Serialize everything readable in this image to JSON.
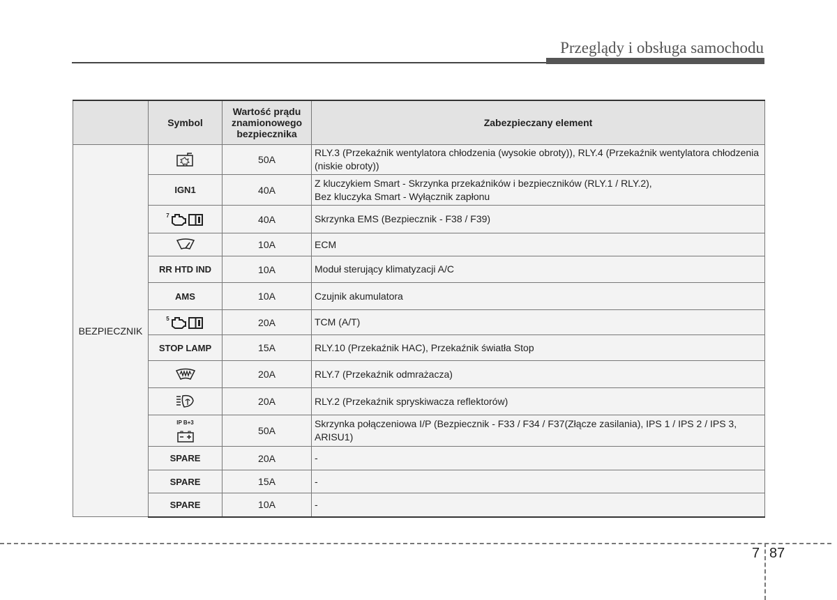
{
  "header": {
    "title": "Przeglądy i obsługa samochodu"
  },
  "table": {
    "columns": [
      "",
      "Symbol",
      "Wartość prądu znamionowego bezpiecznika",
      "Zabezpieczany element"
    ],
    "group_label": "BEZPIECZNIK",
    "rows": [
      {
        "symbol_icon": "cooling-fan-icon",
        "symbol": "",
        "value": "50A",
        "desc": "RLY.3 (Przekaźnik wentylatora chłodzenia (wysokie obroty)), RLY.4 (Przekaźnik wentylatora chłodzenia (niskie obroty))"
      },
      {
        "symbol": "IGN1",
        "value": "40A",
        "desc": "Z kluczykiem Smart - Skrzynka przekaźników i bezpieczników (RLY.1 / RLY.2),\nBez kluczyka Smart - Wyłącznik zapłonu"
      },
      {
        "symbol_icon": "engine-manual-icon",
        "symbol": "7",
        "value": "40A",
        "desc": "Skrzynka EMS (Bezpiecznik - F38 / F39)"
      },
      {
        "symbol_icon": "wiper-icon",
        "symbol": "",
        "value": "10A",
        "desc": "ECM"
      },
      {
        "symbol": "RR HTD IND",
        "value": "10A",
        "desc": "Moduł sterujący klimatyzacji A/C"
      },
      {
        "symbol": "AMS",
        "value": "10A",
        "desc": "Czujnik akumulatora"
      },
      {
        "symbol_icon": "engine-manual-icon",
        "symbol": "5",
        "value": "20A",
        "desc": "TCM (A/T)"
      },
      {
        "symbol": "STOP LAMP",
        "value": "15A",
        "desc": "RLY.10 (Przekaźnik HAC), Przekaźnik światła Stop"
      },
      {
        "symbol_icon": "defroster-icon",
        "symbol": "",
        "value": "20A",
        "desc": "RLY.7 (Przekaźnik odmrażacza)"
      },
      {
        "symbol_icon": "headlamp-washer-icon",
        "symbol": "",
        "value": "20A",
        "desc": "RLY.2 (Przekaźnik spryskiwacza reflektorów)"
      },
      {
        "symbol_icon": "battery-icon",
        "symbol": "IP B+3",
        "value": "50A",
        "desc": "Skrzynka połączeniowa I/P (Bezpiecznik - F33 /  F34 /  F37(Złącze zasilania), IPS 1 / IPS 2 / IPS 3, ARISU1)"
      },
      {
        "symbol": "SPARE",
        "value": "20A",
        "desc": "-"
      },
      {
        "symbol": "SPARE",
        "value": "15A",
        "desc": "-"
      },
      {
        "symbol": "SPARE",
        "value": "10A",
        "desc": "-"
      }
    ]
  },
  "footer": {
    "chapter": "7",
    "page": "87"
  }
}
